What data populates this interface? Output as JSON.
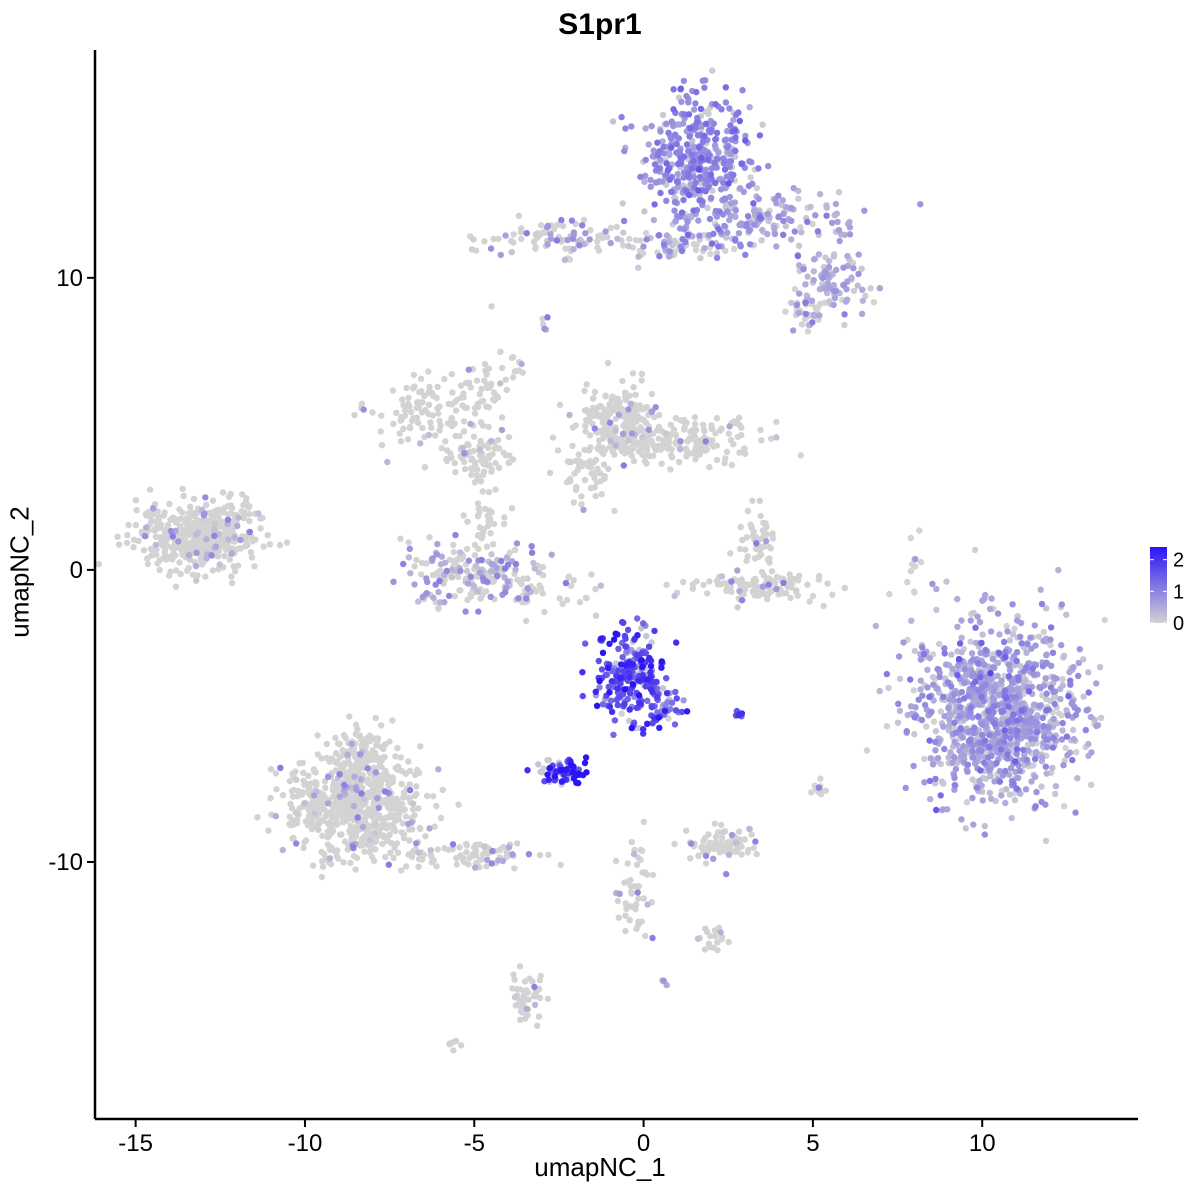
{
  "chart_data": {
    "type": "scatter",
    "title": "S1pr1",
    "xlabel": "umapNC_1",
    "ylabel": "umapNC_2",
    "xlim": [
      -16.2,
      14.6
    ],
    "ylim": [
      -18.8,
      17.8
    ],
    "x_ticks": [
      -15,
      -10,
      -5,
      0,
      5,
      10
    ],
    "x_tick_labels": [
      "-15",
      "-10",
      "-5",
      "0",
      "5",
      "10"
    ],
    "y_ticks": [
      -10,
      0,
      10
    ],
    "y_tick_labels": [
      "-10",
      "0",
      "10"
    ],
    "grid": false,
    "legend": {
      "position": "right",
      "title": "",
      "range": [
        0,
        2.4
      ],
      "breaks": [
        0,
        1,
        2
      ],
      "labels": [
        "0",
        "1",
        "2"
      ]
    },
    "colors": {
      "low": "#d3d3d3",
      "high": "#2a14f5"
    },
    "clusters": [
      {
        "cx": 1.6,
        "cy": 14.1,
        "sx": 0.75,
        "sy": 1.0,
        "n": 420,
        "expr": 0.85,
        "spread": 0.35
      },
      {
        "cx": 3.6,
        "cy": 11.9,
        "sx": 1.3,
        "sy": 0.5,
        "n": 150,
        "expr": 0.6,
        "spread": 0.5
      },
      {
        "cx": 5.6,
        "cy": 9.8,
        "sx": 0.5,
        "sy": 0.5,
        "n": 90,
        "expr": 0.45,
        "spread": 0.5
      },
      {
        "cx": 4.9,
        "cy": 8.8,
        "sx": 0.35,
        "sy": 0.3,
        "n": 35,
        "expr": 0.1,
        "spread": 0.5
      },
      {
        "cx": -2.4,
        "cy": 11.4,
        "sx": 1.1,
        "sy": 0.3,
        "n": 90,
        "expr": 0.15,
        "spread": 0.5
      },
      {
        "cx": 0.9,
        "cy": 11.1,
        "sx": 0.9,
        "sy": 0.25,
        "n": 70,
        "expr": 0.2,
        "spread": 0.5
      },
      {
        "cx": -13.1,
        "cy": 1.1,
        "sx": 0.9,
        "sy": 0.6,
        "n": 440,
        "expr": 0.03,
        "spread": 0.5
      },
      {
        "cx": -12.2,
        "cy": 2.1,
        "sx": 0.3,
        "sy": 0.4,
        "n": 30,
        "expr": 0.02,
        "spread": 0.5
      },
      {
        "cx": -6.3,
        "cy": 5.3,
        "sx": 0.8,
        "sy": 0.6,
        "n": 110,
        "expr": 0.02,
        "spread": 0.5
      },
      {
        "cx": -4.9,
        "cy": 3.9,
        "sx": 0.6,
        "sy": 0.4,
        "n": 70,
        "expr": 0.02,
        "spread": 0.5
      },
      {
        "cx": -4.6,
        "cy": 5.8,
        "sx": 0.3,
        "sy": 0.9,
        "n": 40,
        "expr": 0.02,
        "spread": 0.5
      },
      {
        "cx": -4.9,
        "cy": -0.2,
        "sx": 1.1,
        "sy": 0.6,
        "n": 220,
        "expr": 0.22,
        "spread": 0.5
      },
      {
        "cx": -4.6,
        "cy": 1.7,
        "sx": 0.3,
        "sy": 0.6,
        "n": 30,
        "expr": 0.02,
        "spread": 0.5
      },
      {
        "cx": -0.8,
        "cy": 5.1,
        "sx": 0.6,
        "sy": 0.6,
        "n": 190,
        "expr": 0.02,
        "spread": 0.5
      },
      {
        "cx": 1.2,
        "cy": 4.4,
        "sx": 1.2,
        "sy": 0.35,
        "n": 180,
        "expr": 0.02,
        "spread": 0.5
      },
      {
        "cx": -1.8,
        "cy": 3.2,
        "sx": 0.4,
        "sy": 0.6,
        "n": 50,
        "expr": 0.02,
        "spread": 0.5
      },
      {
        "cx": 3.4,
        "cy": -0.6,
        "sx": 0.9,
        "sy": 0.25,
        "n": 120,
        "expr": 0.04,
        "spread": 0.5
      },
      {
        "cx": 3.4,
        "cy": 0.8,
        "sx": 0.3,
        "sy": 0.6,
        "n": 50,
        "expr": 0.02,
        "spread": 0.5
      },
      {
        "cx": -0.4,
        "cy": -3.6,
        "sx": 0.55,
        "sy": 0.8,
        "n": 230,
        "expr": 1.65,
        "spread": 0.28
      },
      {
        "cx": 0.8,
        "cy": -4.8,
        "sx": 0.35,
        "sy": 0.3,
        "n": 30,
        "expr": 1.45,
        "spread": 0.3
      },
      {
        "cx": -2.4,
        "cy": -6.9,
        "sx": 0.35,
        "sy": 0.22,
        "n": 75,
        "expr": 2.05,
        "spread": 0.22
      },
      {
        "cx": 10.5,
        "cy": -4.8,
        "sx": 1.25,
        "sy": 1.45,
        "n": 1100,
        "expr": 0.6,
        "spread": 0.5
      },
      {
        "cx": -8.6,
        "cy": -8.1,
        "sx": 1.0,
        "sy": 0.95,
        "n": 650,
        "expr": 0.04,
        "spread": 0.5
      },
      {
        "cx": -8.3,
        "cy": -6.2,
        "sx": 0.4,
        "sy": 0.6,
        "n": 90,
        "expr": 0.02,
        "spread": 0.5
      },
      {
        "cx": -5.2,
        "cy": -9.7,
        "sx": 1.0,
        "sy": 0.3,
        "n": 80,
        "expr": 0.05,
        "spread": 0.5
      },
      {
        "cx": 2.4,
        "cy": -9.4,
        "sx": 0.55,
        "sy": 0.3,
        "n": 90,
        "expr": 0.05,
        "spread": 0.5
      },
      {
        "cx": -0.3,
        "cy": -11.0,
        "sx": 0.3,
        "sy": 0.8,
        "n": 50,
        "expr": 0.02,
        "spread": 0.5
      },
      {
        "cx": -3.4,
        "cy": -14.5,
        "sx": 0.25,
        "sy": 0.5,
        "n": 45,
        "expr": 0.03,
        "spread": 0.5
      },
      {
        "cx": 2.1,
        "cy": -12.6,
        "sx": 0.3,
        "sy": 0.2,
        "n": 18,
        "expr": 0.05,
        "spread": 0.5
      },
      {
        "cx": 5.1,
        "cy": -7.5,
        "sx": 0.15,
        "sy": 0.15,
        "n": 10,
        "expr": 0.02,
        "spread": 0.5
      },
      {
        "cx": 7.9,
        "cy": -0.4,
        "sx": 0.12,
        "sy": 0.6,
        "n": 10,
        "expr": 0.02,
        "spread": 0.5
      },
      {
        "cx": -2.0,
        "cy": -0.8,
        "sx": 0.35,
        "sy": 0.35,
        "n": 12,
        "expr": 0.05,
        "spread": 0.5
      },
      {
        "cx": 2.8,
        "cy": -5.0,
        "sx": 0.1,
        "sy": 0.08,
        "n": 6,
        "expr": 1.6,
        "spread": 0.25
      },
      {
        "cx": -5.7,
        "cy": -16.2,
        "sx": 0.15,
        "sy": 0.12,
        "n": 6,
        "expr": 0.02,
        "spread": 0.5
      },
      {
        "cx": 0.6,
        "cy": -14.2,
        "sx": 0.08,
        "sy": 0.08,
        "n": 4,
        "expr": 0.5,
        "spread": 0.5
      },
      {
        "cx": -3.8,
        "cy": 7.0,
        "sx": 0.1,
        "sy": 0.3,
        "n": 8,
        "expr": 0.02,
        "spread": 0.5
      },
      {
        "cx": -2.9,
        "cy": 8.5,
        "sx": 0.1,
        "sy": 0.15,
        "n": 5,
        "expr": 0.1,
        "spread": 0.5
      }
    ]
  }
}
